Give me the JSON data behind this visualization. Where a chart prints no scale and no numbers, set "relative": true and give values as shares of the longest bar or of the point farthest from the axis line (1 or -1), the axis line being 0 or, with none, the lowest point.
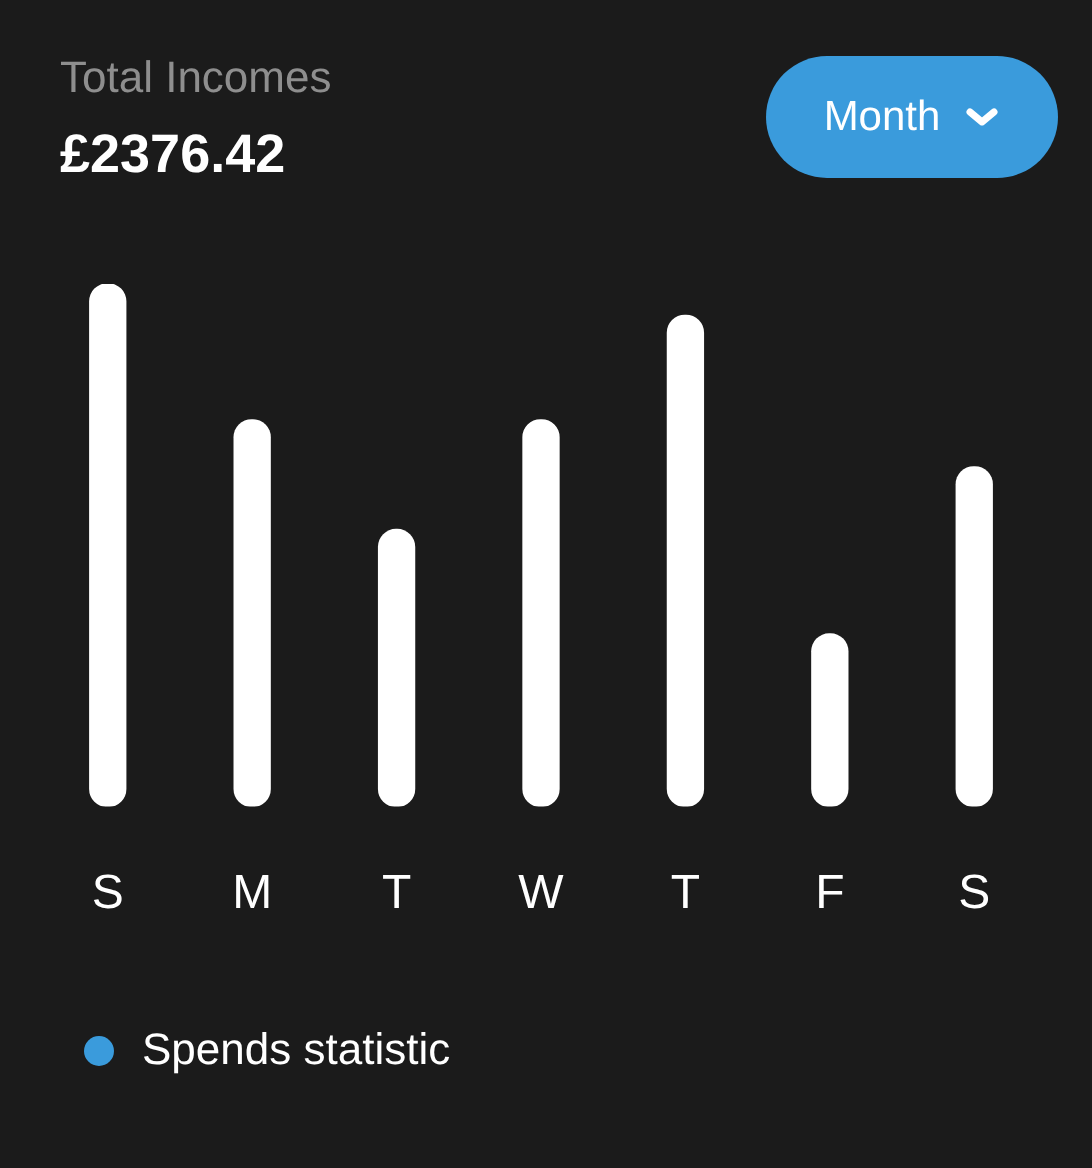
{
  "chart_data": {
    "type": "bar",
    "title": "Total Incomes",
    "subtitle": "£2376.42",
    "categories": [
      "S",
      "M",
      "T",
      "W",
      "T",
      "F",
      "S"
    ],
    "values": [
      1,
      0.74,
      0.53,
      0.74,
      0.94,
      0.33,
      0.65
    ],
    "color": "#ffffff",
    "relative": true,
    "annotations": [
      "Month",
      "Spends statistic"
    ]
  }
}
